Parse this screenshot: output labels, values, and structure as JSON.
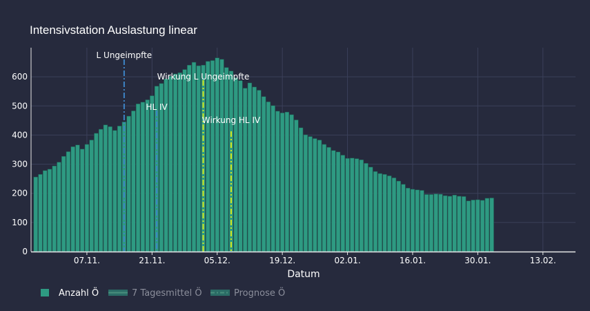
{
  "chart_data": {
    "type": "bar",
    "title": "Intensivstation Auslastung linear",
    "xlabel": "Datum",
    "ylabel": "",
    "start_date": "2021-10-27",
    "x_range": [
      "2021-10-26",
      "2022-02-20"
    ],
    "ylim": [
      0,
      700
    ],
    "y_ticks": [
      0,
      100,
      200,
      300,
      400,
      500,
      600
    ],
    "x_ticks": [
      {
        "date": "2021-11-07",
        "label": "07.11."
      },
      {
        "date": "2021-11-21",
        "label": "21.11."
      },
      {
        "date": "2021-12-05",
        "label": "05.12."
      },
      {
        "date": "2021-12-19",
        "label": "19.12."
      },
      {
        "date": "2022-01-02",
        "label": "02.01."
      },
      {
        "date": "2022-01-16",
        "label": "16.01."
      },
      {
        "date": "2022-01-30",
        "label": "30.01."
      },
      {
        "date": "2022-02-13",
        "label": "13.02."
      }
    ],
    "grid": true,
    "bar_color": "#2e9a82",
    "series": [
      {
        "name": "Anzahl Ö",
        "values": [
          256,
          265,
          278,
          283,
          294,
          307,
          327,
          343,
          360,
          366,
          352,
          368,
          383,
          406,
          420,
          435,
          429,
          416,
          431,
          445,
          465,
          483,
          507,
          513,
          521,
          535,
          568,
          577,
          593,
          602,
          610,
          614,
          625,
          640,
          650,
          638,
          640,
          653,
          656,
          665,
          660,
          632,
          620,
          597,
          587,
          561,
          579,
          565,
          554,
          532,
          514,
          501,
          482,
          476,
          479,
          470,
          452,
          425,
          401,
          395,
          388,
          383,
          368,
          358,
          347,
          342,
          331,
          320,
          321,
          319,
          315,
          303,
          290,
          275,
          268,
          265,
          260,
          253,
          242,
          231,
          218,
          214,
          212,
          210,
          196,
          196,
          198,
          197,
          192,
          190,
          194,
          190,
          189,
          174,
          177,
          178,
          176,
          183,
          184
        ]
      },
      {
        "name": "7 Tagesmittel Ö",
        "values": []
      },
      {
        "name": "Prognose Ö",
        "values": []
      }
    ],
    "vlines": [
      {
        "date": "2021-11-15",
        "label": "L Ungeimpfte",
        "color": "#3d84c6"
      },
      {
        "date": "2021-11-22",
        "label": "HL IV",
        "color": "#3d84c6"
      },
      {
        "date": "2021-12-02",
        "label": "Wirkung L Ungeimpfte",
        "color": "#d4e81e"
      },
      {
        "date": "2021-12-08",
        "label": "Wirkung HL IV",
        "color": "#d4e81e"
      }
    ],
    "legend": {
      "position": "bottom-left",
      "items": [
        {
          "label": "Anzahl Ö",
          "active": true
        },
        {
          "label": "7 Tagesmittel Ö",
          "active": false
        },
        {
          "label": "Prognose Ö",
          "active": false
        }
      ]
    }
  }
}
